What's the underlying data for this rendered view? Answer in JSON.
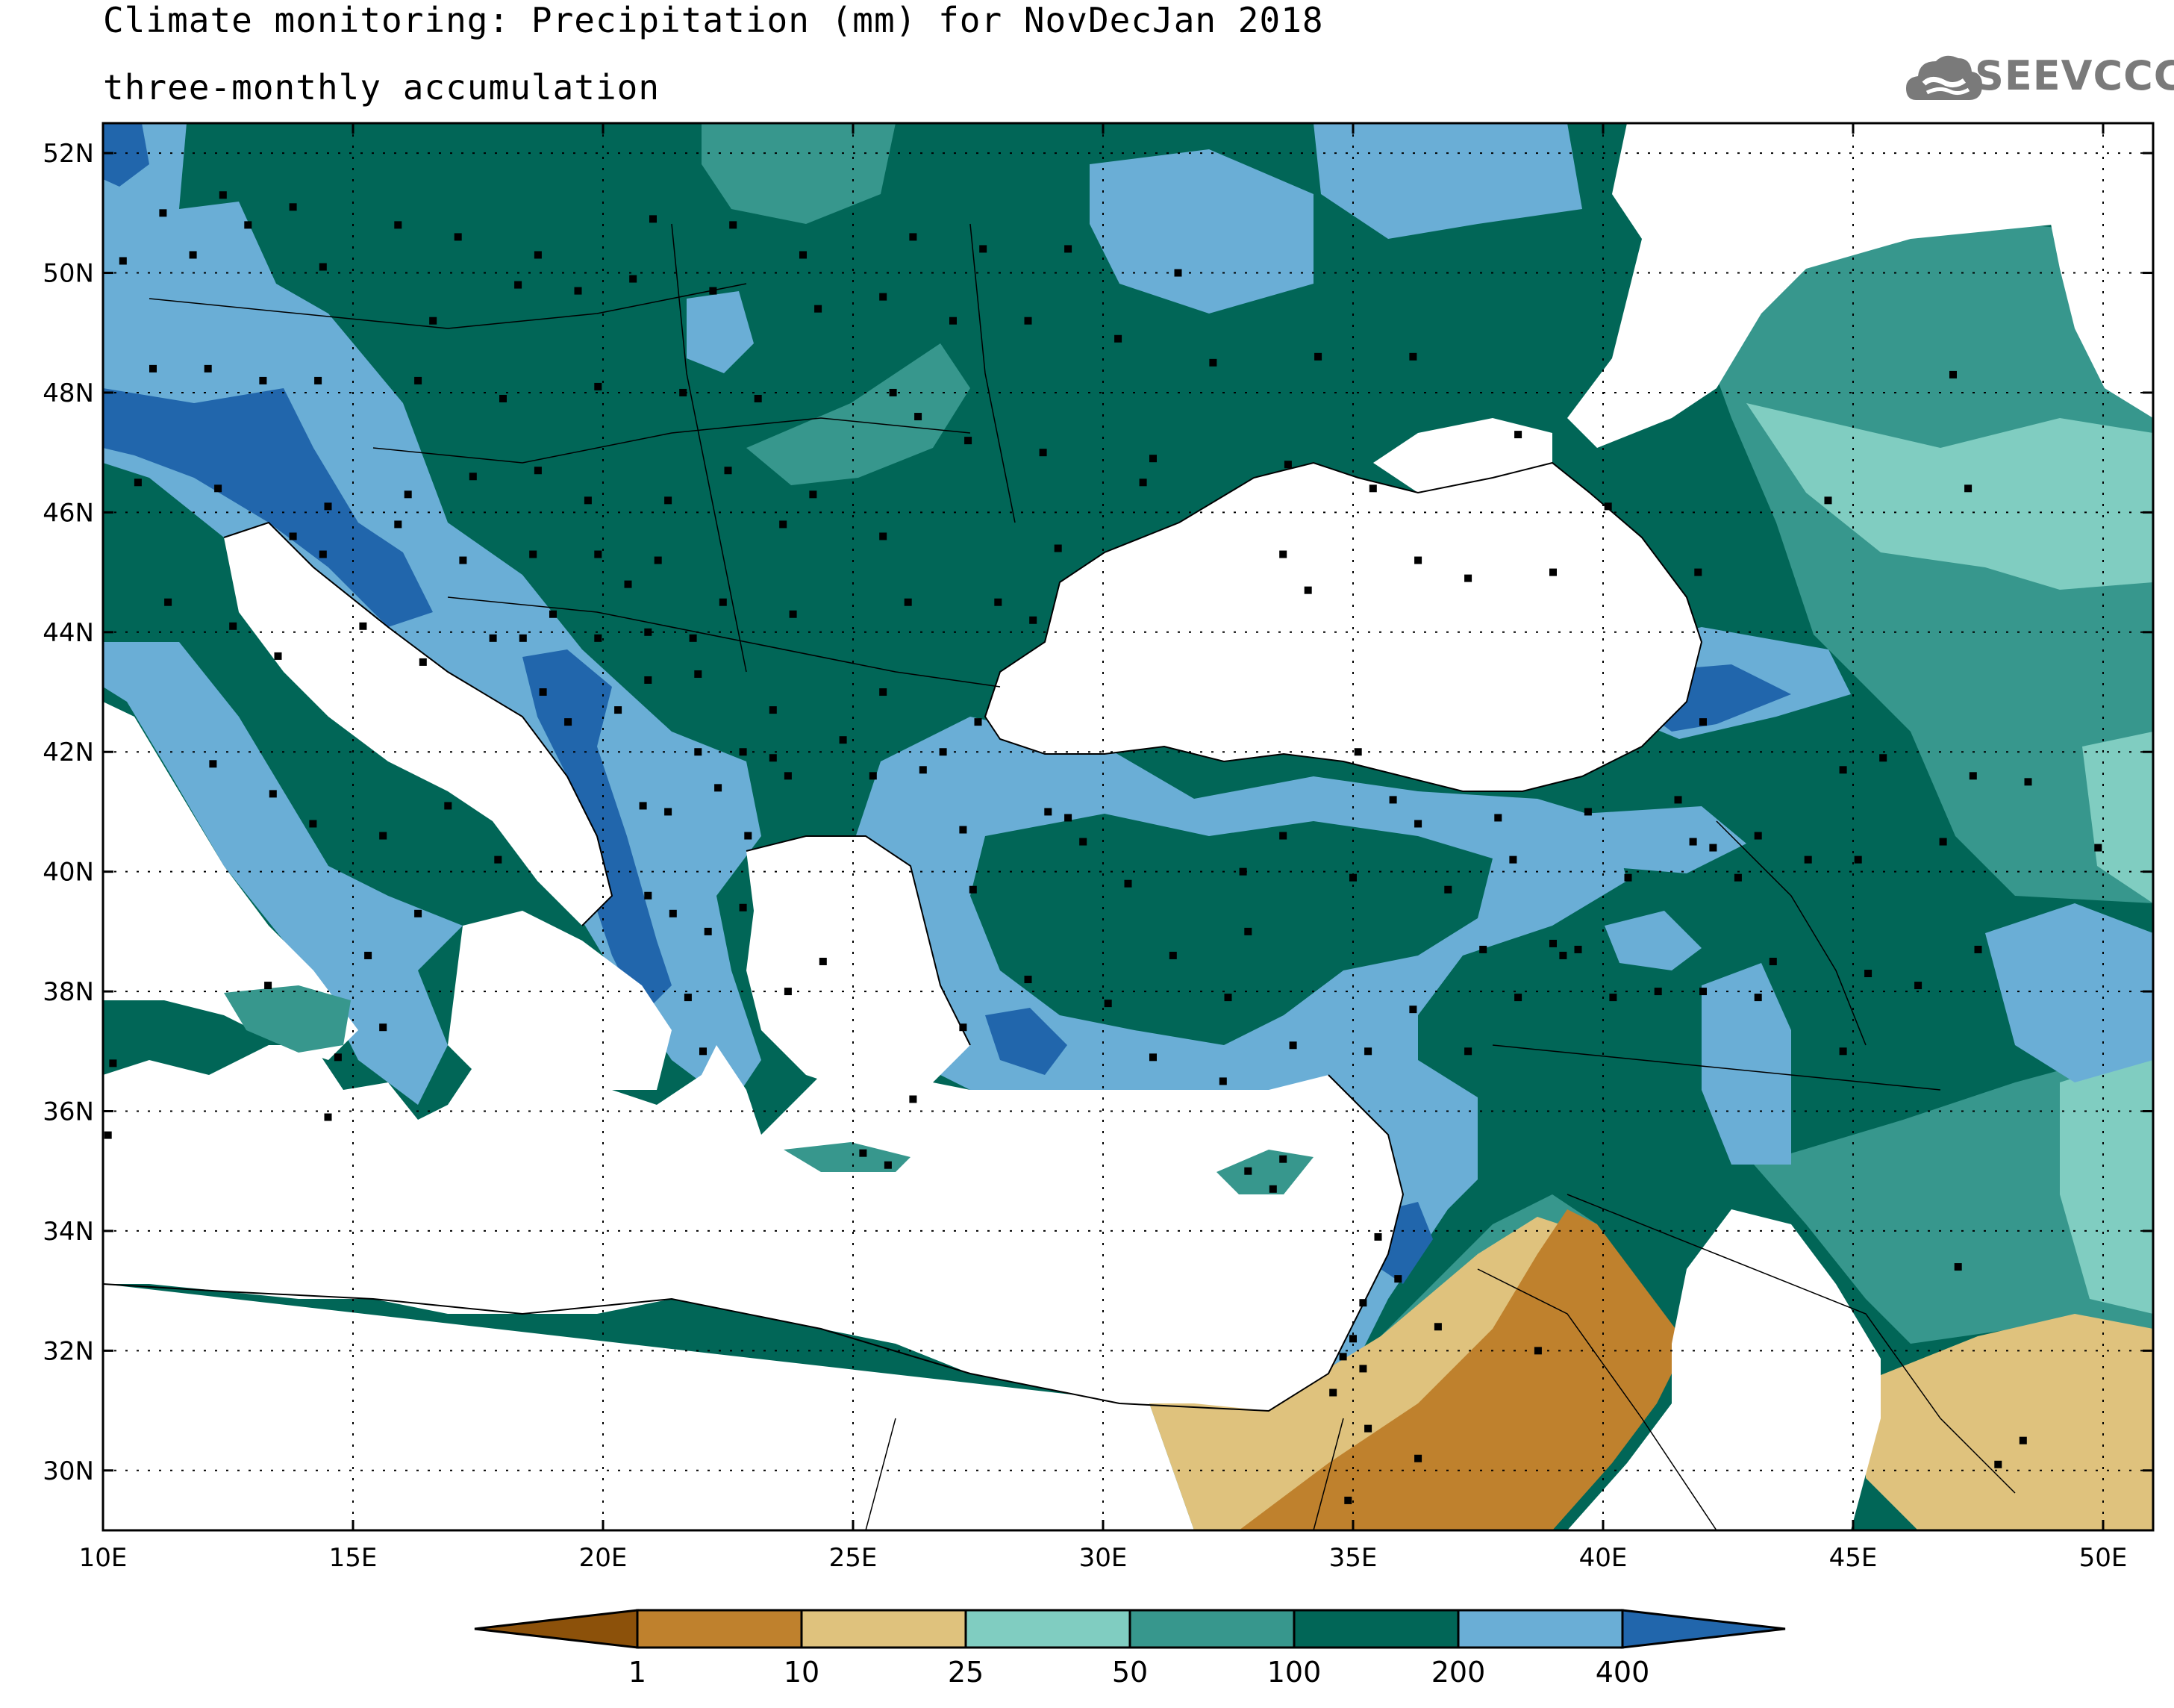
{
  "title": {
    "line1": "Climate monitoring: Precipitation (mm) for NovDecJan 2018",
    "line2": "three-monthly accumulation"
  },
  "logo": {
    "text": "SEEVCCC",
    "icon": "cloud-icon"
  },
  "map": {
    "lon_range": [
      10,
      51
    ],
    "lat_range": [
      29,
      52.5
    ],
    "lon_ticks": [
      {
        "value": 10,
        "label": "10E"
      },
      {
        "value": 15,
        "label": "15E"
      },
      {
        "value": 20,
        "label": "20E"
      },
      {
        "value": 25,
        "label": "25E"
      },
      {
        "value": 30,
        "label": "30E"
      },
      {
        "value": 35,
        "label": "35E"
      },
      {
        "value": 40,
        "label": "40E"
      },
      {
        "value": 45,
        "label": "45E"
      },
      {
        "value": 50,
        "label": "50E"
      }
    ],
    "lat_ticks": [
      {
        "value": 30,
        "label": "30N"
      },
      {
        "value": 32,
        "label": "32N"
      },
      {
        "value": 34,
        "label": "34N"
      },
      {
        "value": 36,
        "label": "36N"
      },
      {
        "value": 38,
        "label": "38N"
      },
      {
        "value": 40,
        "label": "40N"
      },
      {
        "value": 42,
        "label": "42N"
      },
      {
        "value": 44,
        "label": "44N"
      },
      {
        "value": 46,
        "label": "46N"
      },
      {
        "value": 48,
        "label": "48N"
      },
      {
        "value": 50,
        "label": "50N"
      },
      {
        "value": 52,
        "label": "52N"
      }
    ],
    "grid": true,
    "colors": {
      "sea": "#ffffff",
      "c100_200": "#016657",
      "c200_400": "#6aaed6",
      "c400_plus": "#2166ac",
      "c50_100": "#37978d",
      "c25_50": "#80cdc1",
      "c10_25": "#dfc27d",
      "c1_10": "#bf812d"
    },
    "stations": [
      [
        10.4,
        50.2
      ],
      [
        11.2,
        51.0
      ],
      [
        12.4,
        51.3
      ],
      [
        13.8,
        51.1
      ],
      [
        11.8,
        50.3
      ],
      [
        12.9,
        50.8
      ],
      [
        14.4,
        50.1
      ],
      [
        15.9,
        50.8
      ],
      [
        17.1,
        50.6
      ],
      [
        18.7,
        50.3
      ],
      [
        21.0,
        50.9
      ],
      [
        22.6,
        50.8
      ],
      [
        24.0,
        50.3
      ],
      [
        26.2,
        50.6
      ],
      [
        27.6,
        50.4
      ],
      [
        29.3,
        50.4
      ],
      [
        31.5,
        50.0
      ],
      [
        16.6,
        49.2
      ],
      [
        18.3,
        49.8
      ],
      [
        19.5,
        49.7
      ],
      [
        20.6,
        49.9
      ],
      [
        22.2,
        49.7
      ],
      [
        25.6,
        49.6
      ],
      [
        27.0,
        49.2
      ],
      [
        24.3,
        49.4
      ],
      [
        28.5,
        49.2
      ],
      [
        30.3,
        48.9
      ],
      [
        32.2,
        48.5
      ],
      [
        34.3,
        48.6
      ],
      [
        36.2,
        48.6
      ],
      [
        11.0,
        48.4
      ],
      [
        12.1,
        48.4
      ],
      [
        13.2,
        48.2
      ],
      [
        14.3,
        48.2
      ],
      [
        16.3,
        48.2
      ],
      [
        18.0,
        47.9
      ],
      [
        19.9,
        48.1
      ],
      [
        21.6,
        48.0
      ],
      [
        23.1,
        47.9
      ],
      [
        25.8,
        48.0
      ],
      [
        26.3,
        47.6
      ],
      [
        27.3,
        47.2
      ],
      [
        28.8,
        47.0
      ],
      [
        31.0,
        46.9
      ],
      [
        33.7,
        46.8
      ],
      [
        35.4,
        46.4
      ],
      [
        38.3,
        47.3
      ],
      [
        40.1,
        46.1
      ],
      [
        47.0,
        48.3
      ],
      [
        44.5,
        46.2
      ],
      [
        47.3,
        46.4
      ],
      [
        41.9,
        45.0
      ],
      [
        10.7,
        46.5
      ],
      [
        12.3,
        46.4
      ],
      [
        14.5,
        46.1
      ],
      [
        16.1,
        46.3
      ],
      [
        17.4,
        46.6
      ],
      [
        18.7,
        46.7
      ],
      [
        19.7,
        46.2
      ],
      [
        21.3,
        46.2
      ],
      [
        22.5,
        46.7
      ],
      [
        24.2,
        46.3
      ],
      [
        23.6,
        45.8
      ],
      [
        25.6,
        45.6
      ],
      [
        26.1,
        44.5
      ],
      [
        27.9,
        44.5
      ],
      [
        28.6,
        44.2
      ],
      [
        29.1,
        45.4
      ],
      [
        30.8,
        46.5
      ],
      [
        33.6,
        45.3
      ],
      [
        34.1,
        44.7
      ],
      [
        36.3,
        45.2
      ],
      [
        37.3,
        44.9
      ],
      [
        39.0,
        45.0
      ],
      [
        13.8,
        45.6
      ],
      [
        14.4,
        45.3
      ],
      [
        15.9,
        45.8
      ],
      [
        17.2,
        45.2
      ],
      [
        18.6,
        45.3
      ],
      [
        19.9,
        45.3
      ],
      [
        20.5,
        44.8
      ],
      [
        21.1,
        45.2
      ],
      [
        22.4,
        44.5
      ],
      [
        23.8,
        44.3
      ],
      [
        21.8,
        43.9
      ],
      [
        21.9,
        43.3
      ],
      [
        23.4,
        42.7
      ],
      [
        24.8,
        42.2
      ],
      [
        25.6,
        43.0
      ],
      [
        26.8,
        42.0
      ],
      [
        27.5,
        42.5
      ],
      [
        11.3,
        44.5
      ],
      [
        12.6,
        44.1
      ],
      [
        13.5,
        43.6
      ],
      [
        15.2,
        44.1
      ],
      [
        16.4,
        43.5
      ],
      [
        17.8,
        43.9
      ],
      [
        18.4,
        43.9
      ],
      [
        19.0,
        44.3
      ],
      [
        19.9,
        43.9
      ],
      [
        20.9,
        44.0
      ],
      [
        18.8,
        43.0
      ],
      [
        19.3,
        42.5
      ],
      [
        20.3,
        42.7
      ],
      [
        20.9,
        43.2
      ],
      [
        21.9,
        42.0
      ],
      [
        22.8,
        42.0
      ],
      [
        23.4,
        41.9
      ],
      [
        20.8,
        41.1
      ],
      [
        21.3,
        41.0
      ],
      [
        22.3,
        41.4
      ],
      [
        22.9,
        40.6
      ],
      [
        23.7,
        41.6
      ],
      [
        25.4,
        41.6
      ],
      [
        26.4,
        41.7
      ],
      [
        27.2,
        40.7
      ],
      [
        28.9,
        41.0
      ],
      [
        29.3,
        40.9
      ],
      [
        32.8,
        40.0
      ],
      [
        33.6,
        40.6
      ],
      [
        35.1,
        42.0
      ],
      [
        35.8,
        41.2
      ],
      [
        36.3,
        40.8
      ],
      [
        37.9,
        40.9
      ],
      [
        38.2,
        40.2
      ],
      [
        39.7,
        41.0
      ],
      [
        41.5,
        41.2
      ],
      [
        41.8,
        40.5
      ],
      [
        42.2,
        40.4
      ],
      [
        42.7,
        39.9
      ],
      [
        43.1,
        40.6
      ],
      [
        44.1,
        40.2
      ],
      [
        45.1,
        40.2
      ],
      [
        46.8,
        40.5
      ],
      [
        47.4,
        41.6
      ],
      [
        48.5,
        41.5
      ],
      [
        49.9,
        40.4
      ],
      [
        44.8,
        41.7
      ],
      [
        45.6,
        41.9
      ],
      [
        42.0,
        42.5
      ],
      [
        12.2,
        41.8
      ],
      [
        13.4,
        41.3
      ],
      [
        14.2,
        40.8
      ],
      [
        15.6,
        40.6
      ],
      [
        16.9,
        41.1
      ],
      [
        17.9,
        40.2
      ],
      [
        16.3,
        39.3
      ],
      [
        15.3,
        38.6
      ],
      [
        15.6,
        37.4
      ],
      [
        13.3,
        38.1
      ],
      [
        14.7,
        36.9
      ],
      [
        14.5,
        35.9
      ],
      [
        10.2,
        36.8
      ],
      [
        10.1,
        35.6
      ],
      [
        20.9,
        39.6
      ],
      [
        21.4,
        39.3
      ],
      [
        22.1,
        39.0
      ],
      [
        22.8,
        39.4
      ],
      [
        21.7,
        37.9
      ],
      [
        23.7,
        38.0
      ],
      [
        24.4,
        38.5
      ],
      [
        22.0,
        37.0
      ],
      [
        25.2,
        35.3
      ],
      [
        25.7,
        35.1
      ],
      [
        26.2,
        36.2
      ],
      [
        27.2,
        37.4
      ],
      [
        27.4,
        39.7
      ],
      [
        28.5,
        38.2
      ],
      [
        30.1,
        37.8
      ],
      [
        31.4,
        38.6
      ],
      [
        32.5,
        37.9
      ],
      [
        33.8,
        37.1
      ],
      [
        35.3,
        37.0
      ],
      [
        36.2,
        37.7
      ],
      [
        37.3,
        37.0
      ],
      [
        38.3,
        37.9
      ],
      [
        39.2,
        38.6
      ],
      [
        40.2,
        37.9
      ],
      [
        41.1,
        38.0
      ],
      [
        42.0,
        38.0
      ],
      [
        43.4,
        38.5
      ],
      [
        45.3,
        38.3
      ],
      [
        46.3,
        38.1
      ],
      [
        44.8,
        37.0
      ],
      [
        47.5,
        38.7
      ],
      [
        35.0,
        39.9
      ],
      [
        36.9,
        39.7
      ],
      [
        39.5,
        38.7
      ],
      [
        40.5,
        39.9
      ],
      [
        32.9,
        39.0
      ],
      [
        37.6,
        38.7
      ],
      [
        29.6,
        40.5
      ],
      [
        30.5,
        39.8
      ],
      [
        31.0,
        36.9
      ],
      [
        32.4,
        36.5
      ],
      [
        33.6,
        35.2
      ],
      [
        32.9,
        35.0
      ],
      [
        33.4,
        34.7
      ],
      [
        35.5,
        33.9
      ],
      [
        35.9,
        33.2
      ],
      [
        35.2,
        32.8
      ],
      [
        35.0,
        32.2
      ],
      [
        34.8,
        31.9
      ],
      [
        35.2,
        31.7
      ],
      [
        34.6,
        31.3
      ],
      [
        35.3,
        30.7
      ],
      [
        34.9,
        29.5
      ],
      [
        36.3,
        30.2
      ],
      [
        38.7,
        32.0
      ],
      [
        36.7,
        32.4
      ],
      [
        47.1,
        33.4
      ],
      [
        48.4,
        30.5
      ],
      [
        47.9,
        30.1
      ],
      [
        39.0,
        38.8
      ],
      [
        43.1,
        37.9
      ]
    ]
  },
  "colorbar": {
    "labels": [
      "1",
      "10",
      "25",
      "50",
      "100",
      "200",
      "400"
    ],
    "colors": [
      "#8c510a",
      "#bf812d",
      "#dfc27d",
      "#80cdc1",
      "#37978d",
      "#016657",
      "#6aaed6",
      "#2166ac"
    ]
  }
}
